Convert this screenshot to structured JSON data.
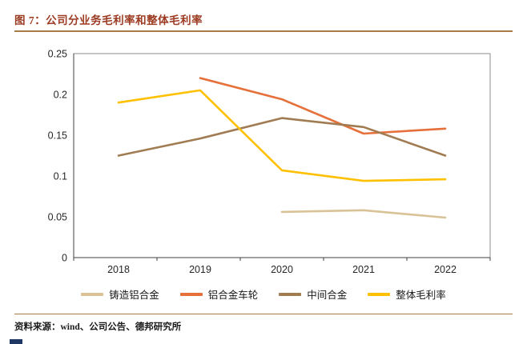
{
  "header": {
    "title": "图 7：公司分业务毛利率和整体毛利率"
  },
  "footer": {
    "source": "资料来源：wind、公司公告、德邦研究所"
  },
  "accent": {
    "title_color": "#9c3b22",
    "rule_color": "#a97c45",
    "mark_color": "#1f3864"
  },
  "chart_data": {
    "type": "line",
    "title": "公司分业务毛利率和整体毛利率",
    "xlabel": "",
    "ylabel": "",
    "categories": [
      "2018",
      "2019",
      "2020",
      "2021",
      "2022"
    ],
    "series": [
      {
        "name": "铸造铝合金",
        "color": "#d9c296",
        "values": [
          null,
          null,
          0.056,
          0.058,
          0.049
        ]
      },
      {
        "name": "铝合金车轮",
        "color": "#e6703a",
        "values": [
          null,
          0.22,
          0.194,
          0.152,
          0.158
        ]
      },
      {
        "name": "中间合金",
        "color": "#a17c52",
        "values": [
          0.125,
          0.146,
          0.171,
          0.16,
          0.125
        ]
      },
      {
        "name": "整体毛利率",
        "color": "#ffc000",
        "values": [
          0.19,
          0.205,
          0.107,
          0.094,
          0.096
        ]
      }
    ],
    "ylim": [
      0,
      0.25
    ],
    "yticks": [
      0,
      0.05,
      0.1,
      0.15,
      0.2,
      0.25
    ],
    "ytick_labels": [
      "0",
      "0.05",
      "0.1",
      "0.15",
      "0.2",
      "0.25"
    ],
    "grid": false,
    "legend_position": "bottom"
  }
}
